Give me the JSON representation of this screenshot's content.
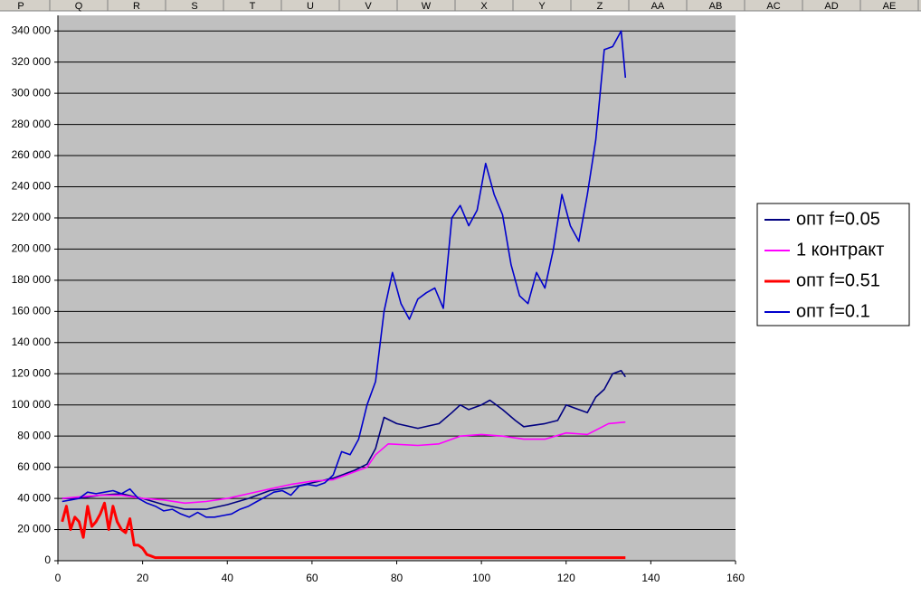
{
  "spreadsheet": {
    "columns": [
      "P",
      "Q",
      "R",
      "S",
      "T",
      "U",
      "V",
      "W",
      "X",
      "Y",
      "Z",
      "AA",
      "AB",
      "AC",
      "AD",
      "AE"
    ]
  },
  "chart_data": {
    "type": "line",
    "xlim": [
      0,
      160
    ],
    "xticks": [
      0,
      20,
      40,
      60,
      80,
      100,
      120,
      140,
      160
    ],
    "ylim": [
      0,
      350000
    ],
    "yticks": [
      0,
      {
        "value": 20000,
        "label": "20 000"
      },
      {
        "value": 40000,
        "label": "40 000"
      },
      {
        "value": 60000,
        "label": "60 000"
      },
      {
        "value": 80000,
        "label": "80 000"
      },
      {
        "value": 100000,
        "label": "100 000"
      },
      {
        "value": 120000,
        "label": "120 000"
      },
      {
        "value": 140000,
        "label": "140 000"
      },
      {
        "value": 160000,
        "label": "160 000"
      },
      {
        "value": 180000,
        "label": "180 000"
      },
      {
        "value": 200000,
        "label": "200 000"
      },
      {
        "value": 220000,
        "label": "220 000"
      },
      {
        "value": 240000,
        "label": "240 000"
      },
      {
        "value": 260000,
        "label": "260 000"
      },
      {
        "value": 280000,
        "label": "280 000"
      },
      {
        "value": 300000,
        "label": "300 000"
      },
      {
        "value": 320000,
        "label": "320 000"
      },
      {
        "value": 340000,
        "label": "340 000"
      }
    ],
    "grid": true,
    "legend": "right",
    "series": [
      {
        "name": "опт f=0.05",
        "color": "#000080",
        "x": [
          1,
          5,
          10,
          15,
          20,
          25,
          30,
          35,
          40,
          45,
          50,
          55,
          60,
          65,
          70,
          73,
          75,
          77,
          80,
          85,
          90,
          93,
          95,
          97,
          100,
          102,
          105,
          108,
          110,
          115,
          118,
          120,
          123,
          125,
          127,
          129,
          131,
          133,
          134
        ],
        "values": [
          40000,
          40000,
          42000,
          43000,
          40000,
          36000,
          33000,
          33000,
          36000,
          40000,
          45000,
          47000,
          50000,
          53000,
          58000,
          62000,
          72000,
          92000,
          88000,
          85000,
          88000,
          95000,
          100000,
          97000,
          100000,
          103000,
          97000,
          90000,
          86000,
          88000,
          90000,
          100000,
          97000,
          95000,
          105000,
          110000,
          120000,
          122000,
          118000
        ]
      },
      {
        "name": "1 контракт",
        "color": "#ff00ff",
        "x": [
          1,
          5,
          10,
          15,
          20,
          25,
          30,
          35,
          40,
          45,
          50,
          55,
          60,
          65,
          70,
          73,
          75,
          78,
          85,
          90,
          95,
          100,
          105,
          110,
          115,
          120,
          125,
          130,
          134
        ],
        "values": [
          40000,
          41000,
          42000,
          42000,
          40000,
          39000,
          37000,
          38000,
          40000,
          43000,
          46000,
          49000,
          51000,
          52000,
          57000,
          60000,
          68000,
          75000,
          74000,
          75000,
          80000,
          81000,
          80000,
          78000,
          78000,
          82000,
          81000,
          88000,
          89000
        ]
      },
      {
        "name": "опт f=0.51",
        "color": "#ff0000",
        "x": [
          1,
          2,
          3,
          4,
          5,
          6,
          7,
          8,
          9,
          10,
          11,
          12,
          13,
          14,
          15,
          16,
          17,
          18,
          19,
          20,
          21,
          22,
          23,
          134
        ],
        "values": [
          25000,
          35000,
          20000,
          28000,
          25000,
          15000,
          35000,
          22000,
          25000,
          30000,
          37000,
          20000,
          35000,
          25000,
          20000,
          18000,
          27000,
          10000,
          10000,
          8000,
          4000,
          3000,
          2000,
          2000
        ]
      },
      {
        "name": "опт f=0.1",
        "color": "#0000cc",
        "x": [
          1,
          3,
          5,
          7,
          9,
          11,
          13,
          15,
          17,
          19,
          21,
          23,
          25,
          27,
          29,
          31,
          33,
          35,
          37,
          39,
          41,
          43,
          45,
          47,
          49,
          51,
          53,
          55,
          57,
          59,
          61,
          63,
          65,
          67,
          69,
          71,
          73,
          75,
          77,
          79,
          81,
          83,
          85,
          87,
          89,
          91,
          93,
          95,
          97,
          99,
          101,
          103,
          105,
          107,
          109,
          111,
          113,
          115,
          117,
          119,
          121,
          123,
          125,
          127,
          129,
          131,
          133,
          134
        ],
        "values": [
          38000,
          39000,
          40000,
          44000,
          43000,
          44000,
          45000,
          43000,
          46000,
          40000,
          37000,
          35000,
          32000,
          33000,
          30000,
          28000,
          31000,
          28000,
          28000,
          29000,
          30000,
          33000,
          35000,
          38000,
          41000,
          44000,
          45000,
          42000,
          48000,
          49000,
          48000,
          50000,
          55000,
          70000,
          68000,
          78000,
          100000,
          115000,
          160000,
          185000,
          165000,
          155000,
          168000,
          172000,
          175000,
          162000,
          220000,
          228000,
          215000,
          225000,
          255000,
          235000,
          222000,
          190000,
          170000,
          165000,
          185000,
          175000,
          200000,
          235000,
          215000,
          205000,
          235000,
          270000,
          328000,
          330000,
          340000,
          310000
        ]
      }
    ]
  }
}
